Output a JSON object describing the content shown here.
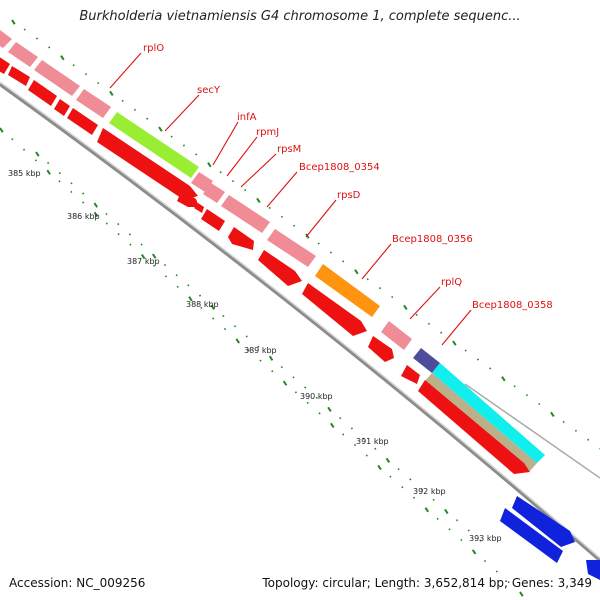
{
  "title": "Burkholderia vietnamiensis G4 chromosome 1, complete sequenc...",
  "footer": {
    "accession": "Accession: NC_009256",
    "summary": "Topology: circular; Length: 3,652,814 bp; Genes: 3,349"
  },
  "colors": {
    "cds_pink": "#f08c96",
    "cds_red": "#ee1111",
    "cds_blue": "#1122dd",
    "secY": "#99ee33",
    "rpsD": "#ff9411",
    "Bcep1808_0358_a": "#4c4c9a",
    "Bcep1808_0358_b": "#11eeee",
    "Bcep1808_0358_c": "#bcb08a",
    "label_text": "#dd1111",
    "backbone": "#888888",
    "tick": "#228822"
  },
  "scale_labels": [
    "385 kbp",
    "386 kbp",
    "387 kbp",
    "388 kbp",
    "389 kbp",
    "390 kbp",
    "391 kbp",
    "392 kbp",
    "393 kbp"
  ],
  "genes": [
    {
      "name": "rplO"
    },
    {
      "name": "secY"
    },
    {
      "name": "infA"
    },
    {
      "name": "rpmJ"
    },
    {
      "name": "rpsM"
    },
    {
      "name": "Bcep1808_0354"
    },
    {
      "name": "rpsD"
    },
    {
      "name": "Bcep1808_0356"
    },
    {
      "name": "rplQ"
    },
    {
      "name": "Bcep1808_0358"
    }
  ]
}
